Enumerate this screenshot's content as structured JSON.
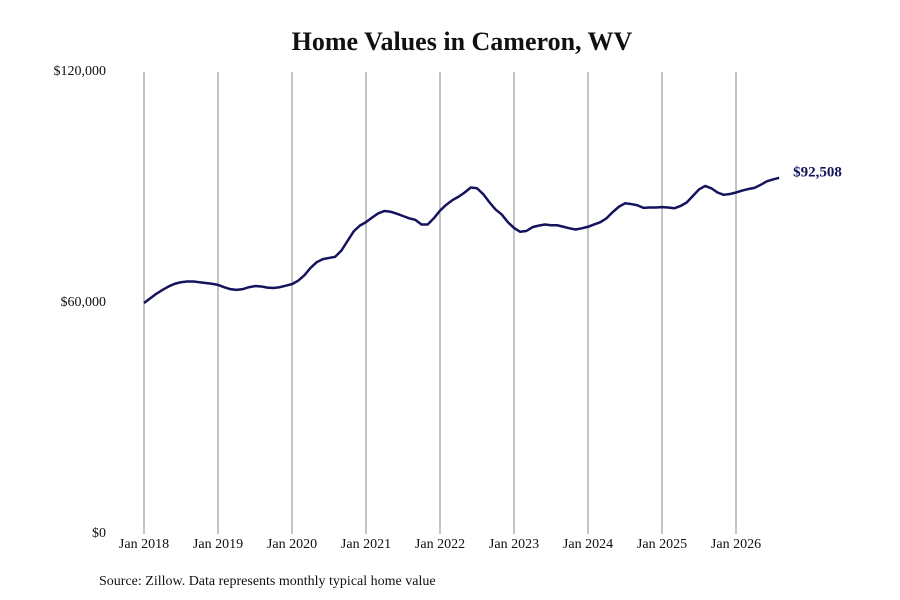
{
  "chart_data": {
    "type": "line",
    "title": "Home Values in Cameron, WV",
    "source": "Source: Zillow. Data represents monthly typical home value",
    "x": [
      "2018-01",
      "2018-02",
      "2018-03",
      "2018-04",
      "2018-05",
      "2018-06",
      "2018-07",
      "2018-08",
      "2018-09",
      "2018-10",
      "2018-11",
      "2018-12",
      "2019-01",
      "2019-02",
      "2019-03",
      "2019-04",
      "2019-05",
      "2019-06",
      "2019-07",
      "2019-08",
      "2019-09",
      "2019-10",
      "2019-11",
      "2019-12",
      "2020-01",
      "2020-02",
      "2020-03",
      "2020-04",
      "2020-05",
      "2020-06",
      "2020-07",
      "2020-08",
      "2020-09",
      "2020-10",
      "2020-11",
      "2020-12",
      "2021-01",
      "2021-02",
      "2021-03",
      "2021-04",
      "2021-05",
      "2021-06",
      "2021-07",
      "2021-08",
      "2021-09",
      "2021-10",
      "2021-11",
      "2021-12",
      "2022-01",
      "2022-02",
      "2022-03",
      "2022-04",
      "2022-05",
      "2022-06",
      "2022-07",
      "2022-08",
      "2022-09",
      "2022-10",
      "2022-11",
      "2022-12",
      "2023-01",
      "2023-02",
      "2023-03",
      "2023-04",
      "2023-05",
      "2023-06",
      "2023-07",
      "2023-08",
      "2023-09",
      "2023-10",
      "2023-11",
      "2023-12",
      "2024-01",
      "2024-02",
      "2024-03",
      "2024-04",
      "2024-05",
      "2024-06",
      "2024-07",
      "2024-08",
      "2024-09",
      "2024-10",
      "2024-11",
      "2024-12",
      "2025-01",
      "2025-02",
      "2025-03",
      "2025-04",
      "2025-05",
      "2025-06",
      "2025-07",
      "2025-08",
      "2025-09",
      "2025-10",
      "2025-11",
      "2025-12",
      "2026-01",
      "2026-02",
      "2026-03",
      "2026-04",
      "2026-05",
      "2026-06",
      "2026-07",
      "2026-08"
    ],
    "series": [
      {
        "color": "#15135e",
        "values": [
          60000,
          61200,
          62400,
          63400,
          64300,
          65000,
          65400,
          65600,
          65600,
          65400,
          65200,
          65000,
          64700,
          64100,
          63600,
          63400,
          63600,
          64100,
          64400,
          64300,
          64000,
          63900,
          64100,
          64500,
          64900,
          65800,
          67200,
          69100,
          70600,
          71400,
          71700,
          72000,
          73600,
          76100,
          78600,
          80100,
          81000,
          82200,
          83300,
          83900,
          83700,
          83200,
          82600,
          82000,
          81600,
          80400,
          80400,
          82000,
          84000,
          85500,
          86700,
          87600,
          88700,
          90000,
          89800,
          88300,
          86200,
          84300,
          83000,
          81000,
          79500,
          78500,
          78700,
          79700,
          80100,
          80400,
          80200,
          80200,
          79800,
          79400,
          79100,
          79400,
          79800,
          80400,
          81000,
          82000,
          83600,
          85000,
          85900,
          85700,
          85400,
          84700,
          84800,
          84800,
          84900,
          84800,
          84600,
          85200,
          86100,
          87800,
          89500,
          90400,
          89800,
          88700,
          88100,
          88300,
          88700,
          89200,
          89600,
          89900,
          90700,
          91600,
          92100,
          92508
        ],
        "value_labels": [
          null,
          null,
          null,
          null,
          null,
          null,
          null,
          null,
          null,
          null,
          null,
          null,
          null,
          null,
          null,
          null,
          null,
          null,
          null,
          null,
          null,
          null,
          null,
          null,
          null,
          null,
          null,
          null,
          null,
          null,
          null,
          null,
          null,
          null,
          null,
          null,
          null,
          null,
          null,
          null,
          null,
          null,
          null,
          null,
          null,
          null,
          null,
          null,
          null,
          null,
          null,
          null,
          null,
          null,
          null,
          null,
          null,
          null,
          null,
          null,
          null,
          null,
          null,
          null,
          null,
          null,
          null,
          null,
          null,
          null,
          null,
          null,
          null,
          null,
          null,
          null,
          null,
          null,
          null,
          null,
          null,
          null,
          null,
          null,
          null,
          null,
          null,
          null,
          null,
          null,
          null,
          null,
          null,
          null,
          null,
          null,
          null,
          null,
          null,
          null,
          null,
          null,
          null,
          "$92,508"
        ]
      }
    ],
    "ylim": [
      0,
      120000
    ],
    "yticks": [
      {
        "value": 0,
        "label": "$0"
      },
      {
        "value": 60000,
        "label": "$60,000"
      },
      {
        "value": 120000,
        "label": "$120,000"
      }
    ],
    "xticks": [
      {
        "value": "2018-01",
        "label": "Jan 2018"
      },
      {
        "value": "2019-01",
        "label": "Jan 2019"
      },
      {
        "value": "2020-01",
        "label": "Jan 2020"
      },
      {
        "value": "2021-01",
        "label": "Jan 2021"
      },
      {
        "value": "2022-01",
        "label": "Jan 2022"
      },
      {
        "value": "2023-01",
        "label": "Jan 2023"
      },
      {
        "value": "2024-01",
        "label": "Jan 2024"
      },
      {
        "value": "2025-01",
        "label": "Jan 2025"
      },
      {
        "value": "2026-01",
        "label": "Jan 2026"
      }
    ],
    "grid": "x"
  }
}
